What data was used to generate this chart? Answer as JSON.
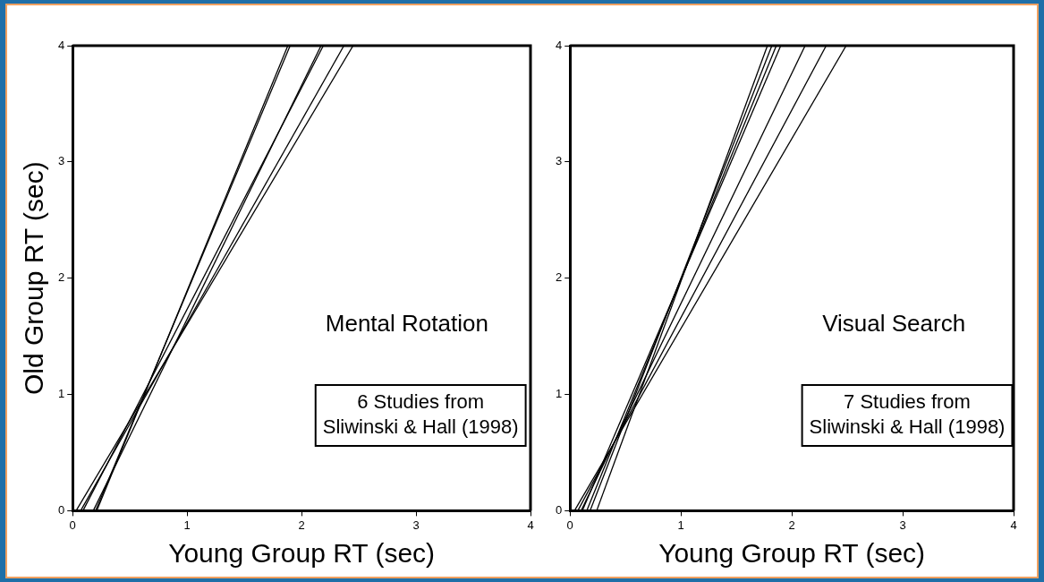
{
  "chart_data": [
    {
      "type": "line",
      "ylabel": "Old Group RT (sec)",
      "xlabel": "Young Group RT (sec)",
      "xlim": [
        0,
        4
      ],
      "ylim": [
        0,
        4
      ],
      "xticks": [
        0,
        1,
        2,
        3,
        4
      ],
      "yticks": [
        0,
        1,
        2,
        3,
        4
      ],
      "grid": false,
      "legend": false,
      "annotations": [
        "Mental Rotation",
        "6 Studies from\nSliwinski & Hall (1998)"
      ],
      "series": [
        {
          "color": "#000000",
          "x": [
            0.21,
            1.88
          ],
          "values": [
            0,
            4
          ]
        },
        {
          "color": "#000000",
          "x": [
            0.2,
            1.9
          ],
          "values": [
            0,
            4
          ]
        },
        {
          "color": "#000000",
          "x": [
            0.18,
            2.17
          ],
          "values": [
            0,
            4
          ]
        },
        {
          "color": "#000000",
          "x": [
            0.09,
            2.19
          ],
          "values": [
            0,
            4
          ]
        },
        {
          "color": "#000000",
          "x": [
            0.07,
            2.37
          ],
          "values": [
            0,
            4
          ]
        },
        {
          "color": "#000000",
          "x": [
            0.03,
            2.45
          ],
          "values": [
            0,
            4
          ]
        }
      ]
    },
    {
      "type": "line",
      "xlabel": "Young Group RT (sec)",
      "xlim": [
        0,
        4
      ],
      "ylim": [
        0,
        4
      ],
      "xticks": [
        0,
        1,
        2,
        3,
        4
      ],
      "yticks": [
        0,
        1,
        2,
        3,
        4
      ],
      "grid": false,
      "legend": false,
      "annotations": [
        "Visual Search",
        "7 Studies from\nSliwinski & Hall (1998)"
      ],
      "series": [
        {
          "color": "#000000",
          "x": [
            0.24,
            1.78
          ],
          "values": [
            0,
            4
          ]
        },
        {
          "color": "#000000",
          "x": [
            0.18,
            1.82
          ],
          "values": [
            0,
            4
          ]
        },
        {
          "color": "#000000",
          "x": [
            0.15,
            1.86
          ],
          "values": [
            0,
            4
          ]
        },
        {
          "color": "#000000",
          "x": [
            0.11,
            1.9
          ],
          "values": [
            0,
            4
          ]
        },
        {
          "color": "#000000",
          "x": [
            0.1,
            2.12
          ],
          "values": [
            0,
            4
          ]
        },
        {
          "color": "#000000",
          "x": [
            0.07,
            2.31
          ],
          "values": [
            0,
            4
          ]
        },
        {
          "color": "#000000",
          "x": [
            0.04,
            2.49
          ],
          "values": [
            0,
            4
          ]
        }
      ]
    }
  ]
}
